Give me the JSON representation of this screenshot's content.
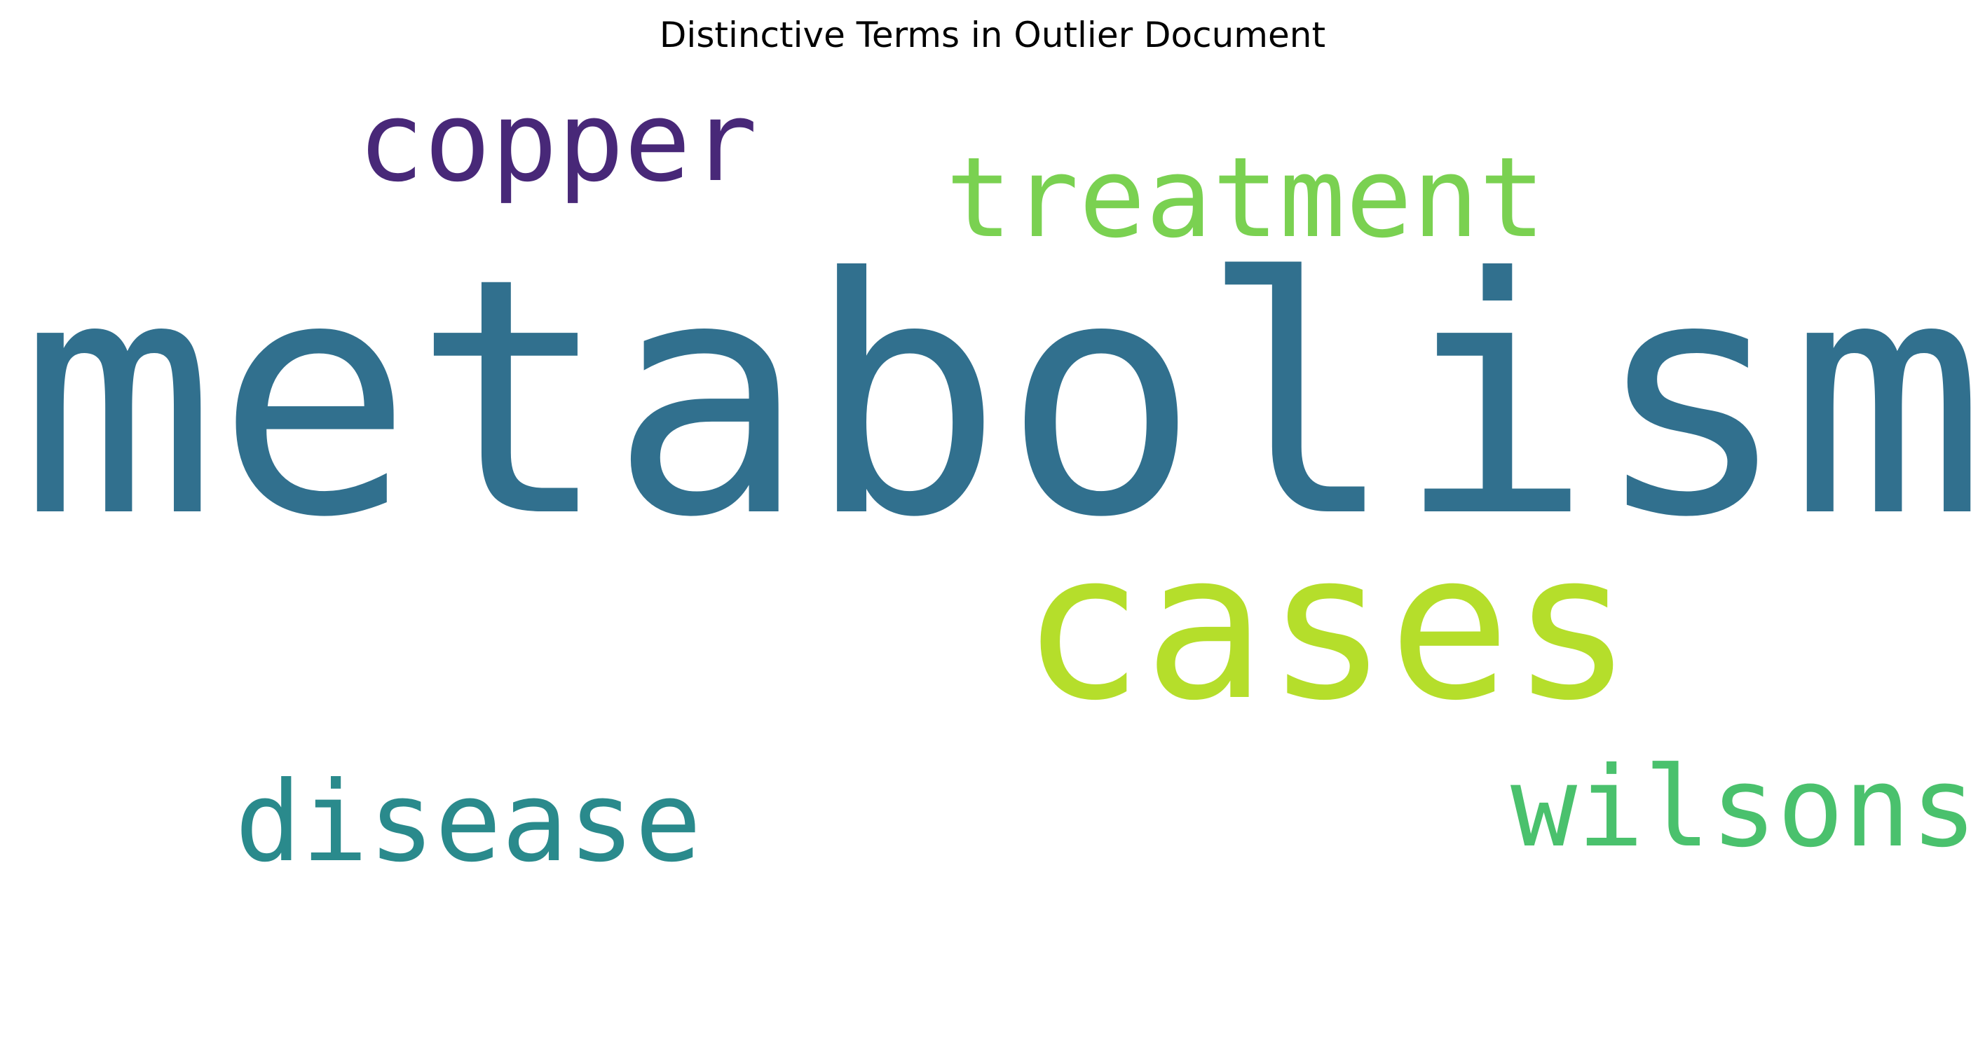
{
  "chart_data": {
    "type": "wordcloud",
    "title": "Distinctive Terms in Outlier Document",
    "words": [
      {
        "text": "metabolism",
        "weight": 1.0,
        "color": "#31708e"
      },
      {
        "text": "cases",
        "weight": 0.82,
        "color": "#b5de2b"
      },
      {
        "text": "treatment",
        "weight": 0.5,
        "color": "#7ad151"
      },
      {
        "text": "copper",
        "weight": 0.48,
        "color": "#482878"
      },
      {
        "text": "disease",
        "weight": 0.48,
        "color": "#2a8a8c"
      },
      {
        "text": "wilsons",
        "weight": 0.48,
        "color": "#4ac16d"
      }
    ]
  }
}
